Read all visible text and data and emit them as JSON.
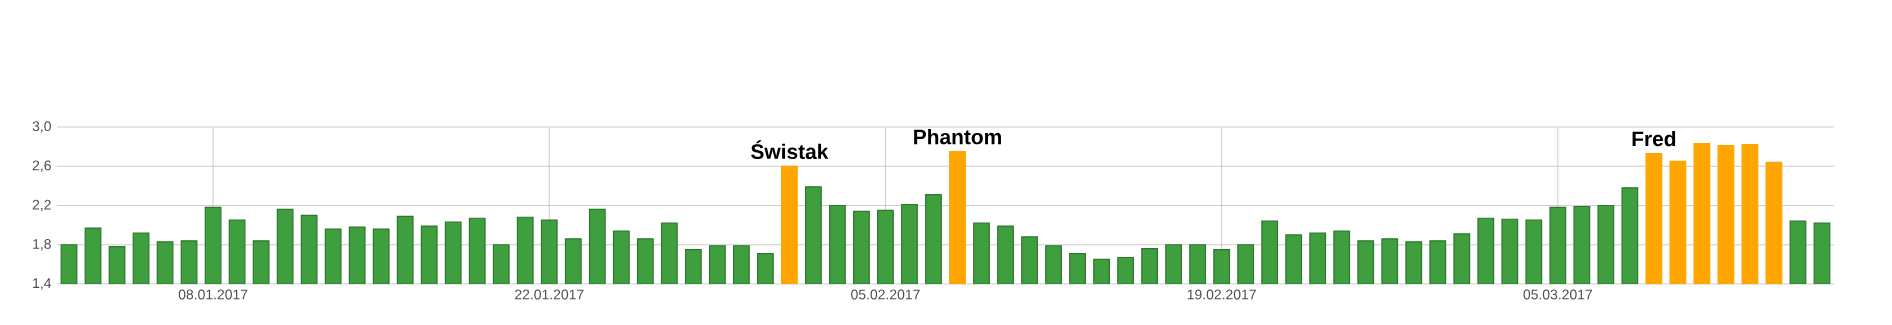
{
  "chart_data": {
    "type": "bar",
    "x": [
      "2017-01-02",
      "2017-01-03",
      "2017-01-04",
      "2017-01-05",
      "2017-01-06",
      "2017-01-07",
      "2017-01-08",
      "2017-01-09",
      "2017-01-10",
      "2017-01-11",
      "2017-01-12",
      "2017-01-13",
      "2017-01-14",
      "2017-01-15",
      "2017-01-16",
      "2017-01-17",
      "2017-01-18",
      "2017-01-19",
      "2017-01-20",
      "2017-01-21",
      "2017-01-22",
      "2017-01-23",
      "2017-01-24",
      "2017-01-25",
      "2017-01-26",
      "2017-01-27",
      "2017-01-28",
      "2017-01-29",
      "2017-01-30",
      "2017-01-31",
      "2017-02-01",
      "2017-02-02",
      "2017-02-03",
      "2017-02-04",
      "2017-02-05",
      "2017-02-06",
      "2017-02-07",
      "2017-02-08",
      "2017-02-09",
      "2017-02-10",
      "2017-02-11",
      "2017-02-12",
      "2017-02-13",
      "2017-02-14",
      "2017-02-15",
      "2017-02-16",
      "2017-02-17",
      "2017-02-18",
      "2017-02-19",
      "2017-02-20",
      "2017-02-21",
      "2017-02-22",
      "2017-02-23",
      "2017-02-24",
      "2017-02-25",
      "2017-02-26",
      "2017-02-27",
      "2017-02-28",
      "2017-03-01",
      "2017-03-02",
      "2017-03-03",
      "2017-03-04",
      "2017-03-05",
      "2017-03-06",
      "2017-03-07",
      "2017-03-08",
      "2017-03-09",
      "2017-03-10",
      "2017-03-11",
      "2017-03-12",
      "2017-03-13",
      "2017-03-14",
      "2017-03-15",
      "2017-03-16"
    ],
    "values": [
      1.8,
      1.97,
      1.78,
      1.92,
      1.83,
      1.84,
      2.18,
      2.05,
      1.84,
      2.16,
      2.1,
      1.96,
      1.98,
      1.96,
      2.09,
      1.99,
      2.03,
      2.07,
      1.8,
      2.08,
      2.05,
      1.86,
      2.16,
      1.94,
      1.86,
      2.02,
      1.75,
      1.79,
      1.79,
      1.71,
      2.6,
      2.39,
      2.2,
      2.14,
      2.15,
      2.21,
      2.31,
      2.75,
      2.02,
      1.99,
      1.88,
      1.79,
      1.71,
      1.65,
      1.67,
      1.76,
      1.8,
      1.8,
      1.75,
      1.8,
      2.04,
      1.9,
      1.92,
      1.94,
      1.84,
      1.86,
      1.83,
      1.84,
      1.91,
      2.07,
      2.06,
      2.05,
      2.18,
      2.19,
      2.2,
      2.38,
      2.73,
      2.65,
      2.83,
      2.81,
      2.82,
      2.64,
      2.04,
      2.02
    ],
    "colors": [
      "#3f9f3f",
      "#3f9f3f",
      "#3f9f3f",
      "#3f9f3f",
      "#3f9f3f",
      "#3f9f3f",
      "#3f9f3f",
      "#3f9f3f",
      "#3f9f3f",
      "#3f9f3f",
      "#3f9f3f",
      "#3f9f3f",
      "#3f9f3f",
      "#3f9f3f",
      "#3f9f3f",
      "#3f9f3f",
      "#3f9f3f",
      "#3f9f3f",
      "#3f9f3f",
      "#3f9f3f",
      "#3f9f3f",
      "#3f9f3f",
      "#3f9f3f",
      "#3f9f3f",
      "#3f9f3f",
      "#3f9f3f",
      "#3f9f3f",
      "#3f9f3f",
      "#3f9f3f",
      "#3f9f3f",
      "#ffa500",
      "#3f9f3f",
      "#3f9f3f",
      "#3f9f3f",
      "#3f9f3f",
      "#3f9f3f",
      "#3f9f3f",
      "#ffa500",
      "#3f9f3f",
      "#3f9f3f",
      "#3f9f3f",
      "#3f9f3f",
      "#3f9f3f",
      "#3f9f3f",
      "#3f9f3f",
      "#3f9f3f",
      "#3f9f3f",
      "#3f9f3f",
      "#3f9f3f",
      "#3f9f3f",
      "#3f9f3f",
      "#3f9f3f",
      "#3f9f3f",
      "#3f9f3f",
      "#3f9f3f",
      "#3f9f3f",
      "#3f9f3f",
      "#3f9f3f",
      "#3f9f3f",
      "#3f9f3f",
      "#3f9f3f",
      "#3f9f3f",
      "#3f9f3f",
      "#3f9f3f",
      "#3f9f3f",
      "#3f9f3f",
      "#ffa500",
      "#ffa500",
      "#ffa500",
      "#ffa500",
      "#ffa500",
      "#ffa500",
      "#3f9f3f",
      "#3f9f3f"
    ],
    "xlim": [
      "2017-01-01T12:00",
      "2017-03-16T12:00"
    ],
    "xticks": [
      {
        "value": "2017-01-08",
        "label": "08.01.2017"
      },
      {
        "value": "2017-01-22",
        "label": "22.01.2017"
      },
      {
        "value": "2017-02-05",
        "label": "05.02.2017"
      },
      {
        "value": "2017-02-19",
        "label": "19.02.2017"
      },
      {
        "value": "2017-03-05",
        "label": "05.03.2017"
      }
    ],
    "ylim": [
      1.4,
      3.0
    ],
    "yticks": [
      {
        "value": 1.4,
        "label": "1,4"
      },
      {
        "value": 1.8,
        "label": "1,8"
      },
      {
        "value": 2.2,
        "label": "2,2"
      },
      {
        "value": 2.6,
        "label": "2,6"
      },
      {
        "value": 3.0,
        "label": "3,0"
      }
    ],
    "grid": true,
    "annotations": [
      {
        "text": "Świstak",
        "x": "2017-02-01",
        "y": 2.6
      },
      {
        "text": "Phantom",
        "x": "2017-02-08",
        "y": 2.75
      },
      {
        "text": "Fred",
        "x": "2017-03-09",
        "y": 2.73
      }
    ]
  }
}
